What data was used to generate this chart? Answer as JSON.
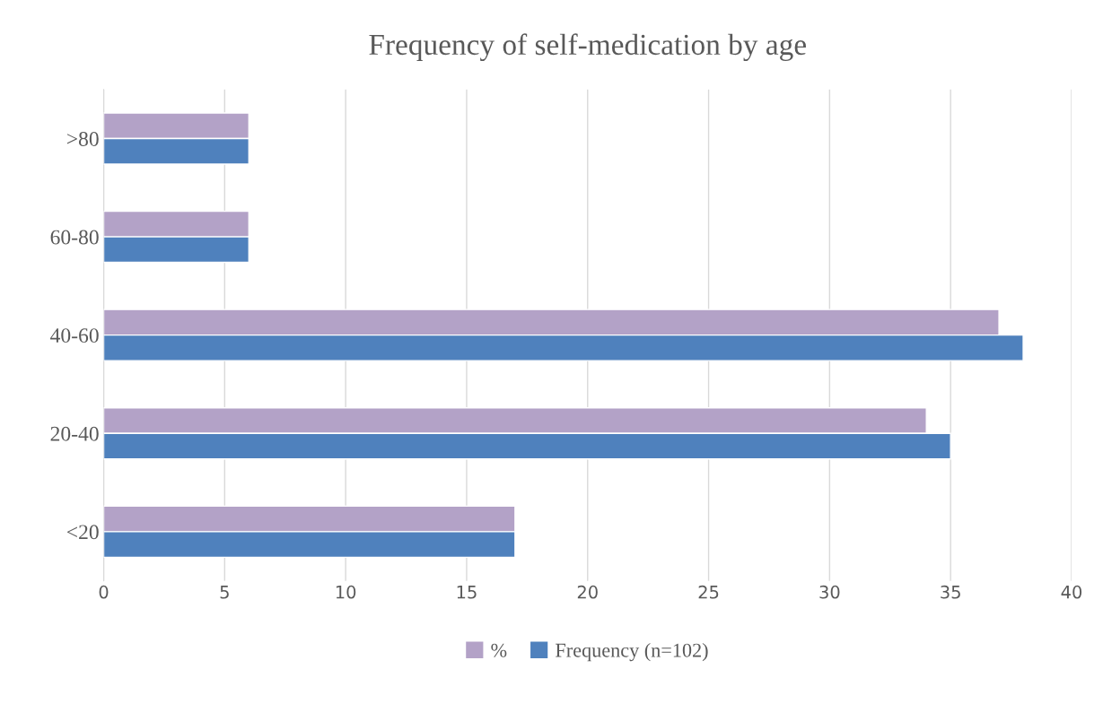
{
  "chart_data": {
    "type": "bar",
    "orientation": "horizontal",
    "title": "Frequency of self-medication by age",
    "categories": [
      ">80",
      "60-80",
      "40-60",
      "20-40",
      "<20"
    ],
    "series": [
      {
        "name": "%",
        "color": "#b3a2c7",
        "values": [
          6,
          6,
          37,
          34,
          17
        ]
      },
      {
        "name": "Frequency (n=102)",
        "color": "#4f81bd",
        "values": [
          6,
          6,
          38,
          35,
          17
        ]
      }
    ],
    "xlim": [
      0,
      40
    ],
    "xticks": [
      0,
      5,
      10,
      15,
      20,
      25,
      30,
      35,
      40
    ],
    "grid": "x",
    "legend": "bottom"
  }
}
